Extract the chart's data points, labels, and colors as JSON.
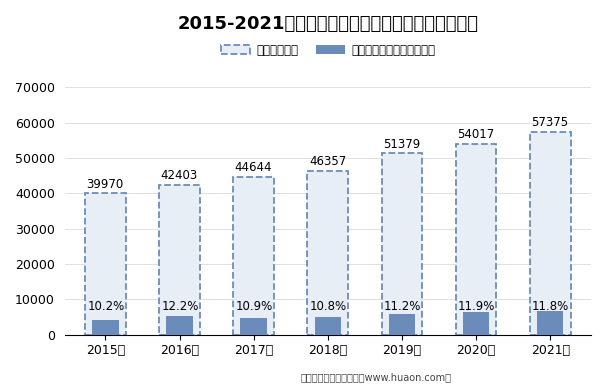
{
  "title": "2015-2021年福建省企业数量及电子商务企业占比图",
  "years": [
    "2015年",
    "2016年",
    "2017年",
    "2018年",
    "2019年",
    "2020年",
    "2021年"
  ],
  "total_values": [
    39970,
    42403,
    44644,
    46357,
    51379,
    54017,
    57375
  ],
  "percentages": [
    "10.2%",
    "12.2%",
    "10.9%",
    "10.8%",
    "11.2%",
    "11.9%",
    "11.8%"
  ],
  "pct_values": [
    0.102,
    0.122,
    0.109,
    0.108,
    0.112,
    0.119,
    0.118
  ],
  "legend_labels": [
    "企业数（个）",
    "有电子商务交易活动的企业"
  ],
  "bar_outline_color": "#6b8cba",
  "bar_face_color": "#e8eef5",
  "solid_bar_color": "#6b8cba",
  "background_color": "#ffffff",
  "ylim": [
    0,
    70000
  ],
  "yticks": [
    0,
    10000,
    20000,
    30000,
    40000,
    50000,
    60000,
    70000
  ],
  "footer": "制图：华经产业研究院（www.huaon.com）",
  "title_fontsize": 13,
  "axis_fontsize": 9,
  "annot_fontsize": 8.5
}
